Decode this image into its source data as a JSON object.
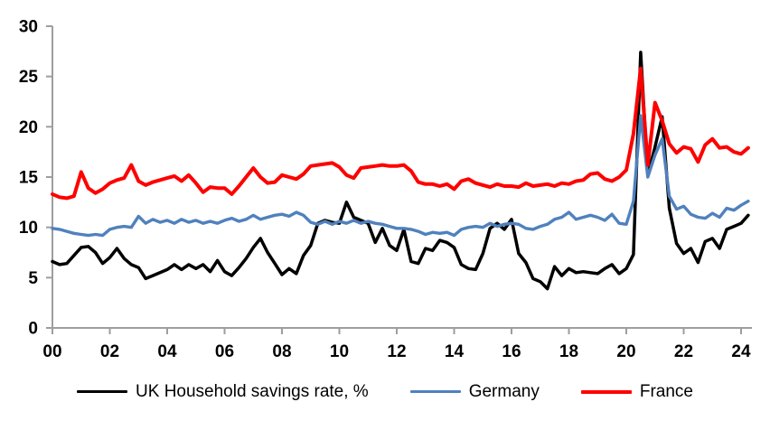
{
  "chart_data": {
    "type": "line",
    "title": "",
    "frequency": "quarterly",
    "x_axis": {
      "start_year": 2000,
      "step_per_point_years": 0.25,
      "tick_labels": [
        "00",
        "02",
        "04",
        "06",
        "08",
        "10",
        "12",
        "14",
        "16",
        "18",
        "20",
        "22",
        "24"
      ],
      "tick_years": [
        2000,
        2002,
        2004,
        2006,
        2008,
        2010,
        2012,
        2014,
        2016,
        2018,
        2020,
        2022,
        2024
      ]
    },
    "y_axis": {
      "ticks": [
        0,
        5,
        10,
        15,
        20,
        25,
        30
      ],
      "range": [
        0,
        30
      ]
    },
    "grid": false,
    "legend_position": "bottom",
    "axis_color": "#9E9E9E",
    "series": [
      {
        "id": "uk",
        "name": "UK Household savings rate, %",
        "color": "#000000",
        "values": [
          6.6,
          6.3,
          6.4,
          7.2,
          8.0,
          8.1,
          7.5,
          6.4,
          7.0,
          7.9,
          6.9,
          6.3,
          6.0,
          4.9,
          5.2,
          5.5,
          5.8,
          6.3,
          5.8,
          6.3,
          5.9,
          6.3,
          5.6,
          6.7,
          5.6,
          5.2,
          6.0,
          6.9,
          8.0,
          8.9,
          7.5,
          6.4,
          5.3,
          5.9,
          5.4,
          7.2,
          8.2,
          10.4,
          10.7,
          10.5,
          10.4,
          12.5,
          11.0,
          10.7,
          10.4,
          8.5,
          9.9,
          8.2,
          7.7,
          9.8,
          6.6,
          6.4,
          7.9,
          7.7,
          8.7,
          8.5,
          8.0,
          6.3,
          5.9,
          5.8,
          7.4,
          9.9,
          10.4,
          9.8,
          10.8,
          7.4,
          6.5,
          4.9,
          4.6,
          3.9,
          6.1,
          5.2,
          5.9,
          5.5,
          5.6,
          5.5,
          5.4,
          5.9,
          6.3,
          5.4,
          5.9,
          7.3,
          27.4,
          15.2,
          18.0,
          21.0,
          11.9,
          8.4,
          7.4,
          7.9,
          6.5,
          8.6,
          8.9,
          7.9,
          9.8,
          10.1,
          10.4,
          11.2
        ]
      },
      {
        "id": "germany",
        "name": "Germany",
        "color": "#4F81BD",
        "values": [
          9.9,
          9.8,
          9.6,
          9.4,
          9.3,
          9.2,
          9.3,
          9.2,
          9.8,
          10.0,
          10.1,
          10.0,
          11.1,
          10.4,
          10.8,
          10.5,
          10.7,
          10.4,
          10.8,
          10.5,
          10.7,
          10.4,
          10.6,
          10.4,
          10.7,
          10.9,
          10.6,
          10.8,
          11.2,
          10.8,
          11.0,
          11.2,
          11.3,
          11.1,
          11.5,
          11.2,
          10.5,
          10.3,
          10.6,
          10.3,
          10.6,
          10.4,
          10.7,
          10.4,
          10.6,
          10.4,
          10.3,
          10.1,
          9.9,
          9.9,
          9.8,
          9.6,
          9.3,
          9.5,
          9.4,
          9.5,
          9.2,
          9.8,
          10.0,
          10.1,
          10.0,
          10.4,
          10.1,
          10.3,
          10.4,
          10.3,
          9.9,
          9.8,
          10.1,
          10.3,
          10.8,
          11.0,
          11.5,
          10.8,
          11.0,
          11.2,
          11.0,
          10.7,
          11.3,
          10.4,
          10.3,
          12.6,
          21.1,
          15.0,
          17.2,
          18.8,
          13.1,
          11.8,
          12.1,
          11.3,
          11.0,
          10.9,
          11.4,
          11.0,
          11.9,
          11.7,
          12.2,
          12.6
        ]
      },
      {
        "id": "france",
        "name": "France",
        "color": "#FF0000",
        "values": [
          13.3,
          13.0,
          12.9,
          13.1,
          15.5,
          13.9,
          13.4,
          13.8,
          14.4,
          14.7,
          14.9,
          16.2,
          14.6,
          14.2,
          14.5,
          14.7,
          14.9,
          15.1,
          14.6,
          15.2,
          14.4,
          13.5,
          14.0,
          13.9,
          13.9,
          13.3,
          14.1,
          15.0,
          15.9,
          15.0,
          14.4,
          14.5,
          15.2,
          15.0,
          14.8,
          15.3,
          16.1,
          16.2,
          16.3,
          16.4,
          16.0,
          15.2,
          14.9,
          15.9,
          16.0,
          16.1,
          16.2,
          16.1,
          16.1,
          16.2,
          15.6,
          14.5,
          14.3,
          14.3,
          14.1,
          14.3,
          13.8,
          14.6,
          14.8,
          14.4,
          14.2,
          14.0,
          14.3,
          14.1,
          14.1,
          14.0,
          14.4,
          14.1,
          14.2,
          14.3,
          14.1,
          14.4,
          14.3,
          14.6,
          14.7,
          15.3,
          15.4,
          14.8,
          14.6,
          15.0,
          15.7,
          19.3,
          25.8,
          16.2,
          22.4,
          20.6,
          18.3,
          17.4,
          18.0,
          17.8,
          16.5,
          18.2,
          18.8,
          17.9,
          18.0,
          17.5,
          17.3,
          17.9
        ]
      }
    ]
  }
}
